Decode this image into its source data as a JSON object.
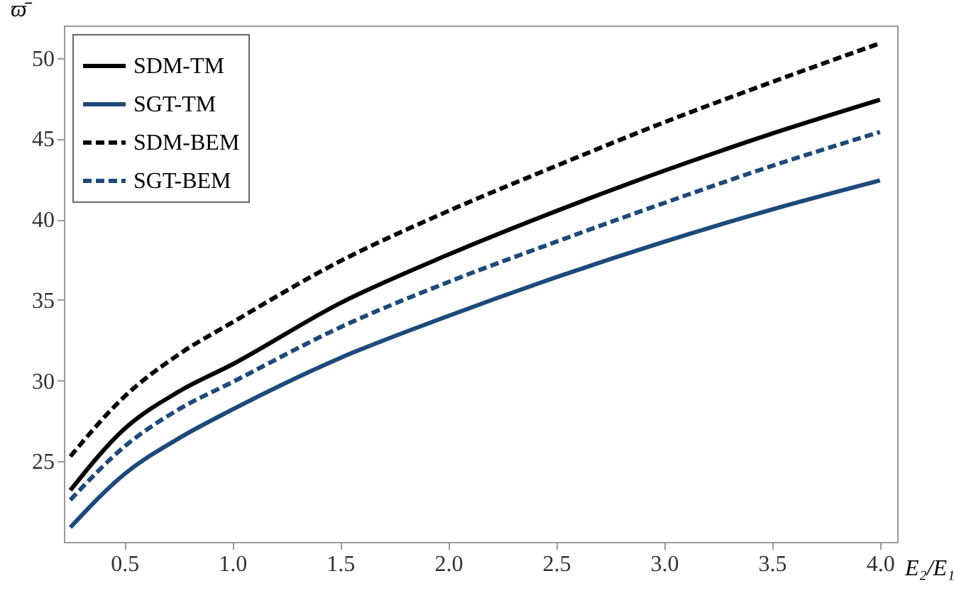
{
  "chart_data": {
    "type": "line",
    "xlabel": "E₂/E₁",
    "ylabel": "ϖ̄",
    "x": [
      0.25,
      0.5,
      0.75,
      1.0,
      1.5,
      2.0,
      2.5,
      3.0,
      3.5,
      4.0
    ],
    "xlim": [
      0.22,
      4.08
    ],
    "ylim": [
      20,
      52
    ],
    "xticks": [
      0.5,
      {
        "value": 1,
        "label": "1.0"
      },
      1.5,
      {
        "value": 2,
        "label": "2.0"
      },
      2.5,
      {
        "value": 3,
        "label": "3.0"
      },
      3.5,
      {
        "value": 4,
        "label": "4.0"
      }
    ],
    "yticks": [
      25,
      30,
      35,
      40,
      45,
      50
    ],
    "grid": false,
    "legend": "top left",
    "series": [
      {
        "name": "SDM-TM",
        "color": "#000000",
        "line_style": "solid",
        "values": [
          23.2,
          27.0,
          29.3,
          31.0,
          34.8,
          37.8,
          40.5,
          43.0,
          45.3,
          47.4
        ]
      },
      {
        "name": "SGT-TM",
        "color": "#1d4a7a",
        "line_style": "solid",
        "values": [
          20.9,
          24.2,
          26.4,
          28.2,
          31.4,
          34.0,
          36.4,
          38.6,
          40.6,
          42.4
        ]
      },
      {
        "name": "SDM-BEM",
        "color": "#000000",
        "line_style": "dashed",
        "values": [
          25.3,
          29.0,
          31.6,
          33.6,
          37.4,
          40.5,
          43.3,
          46.0,
          48.5,
          50.9
        ]
      },
      {
        "name": "SGT-BEM",
        "color": "#1d4a7a",
        "line_style": "dashed",
        "values": [
          22.6,
          25.9,
          28.2,
          29.9,
          33.3,
          36.1,
          38.6,
          41.0,
          43.3,
          45.4
        ]
      }
    ]
  }
}
